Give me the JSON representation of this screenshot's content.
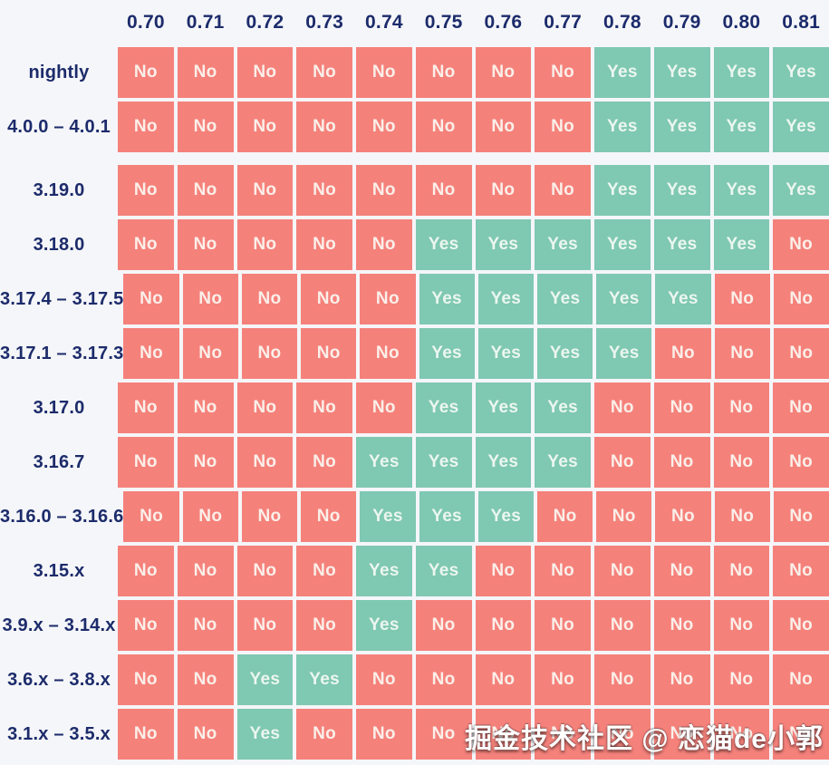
{
  "page": {
    "background": "#F5F6F9"
  },
  "watermark": "掘金技术社区 @ 恋猫de小郭",
  "chart_data": {
    "type": "heatmap",
    "title": "",
    "xlabel": "",
    "ylabel": "",
    "legend_position": "none",
    "grid": false,
    "columns": [
      "0.70",
      "0.71",
      "0.72",
      "0.73",
      "0.74",
      "0.75",
      "0.76",
      "0.77",
      "0.78",
      "0.79",
      "0.80",
      "0.81"
    ],
    "cell_values_meaning": "compatibility Yes/No",
    "colors": {
      "yes": "#7FC8B1",
      "no": "#F5817B",
      "label": "#1C2B6B",
      "yes_text": "#EBF6F0",
      "no_text": "#FBEFE9"
    },
    "sections": [
      {
        "rows": [
          {
            "label": "nightly",
            "values": [
              "No",
              "No",
              "No",
              "No",
              "No",
              "No",
              "No",
              "No",
              "Yes",
              "Yes",
              "Yes",
              "Yes"
            ]
          },
          {
            "label": "4.0.0 – 4.0.1",
            "values": [
              "No",
              "No",
              "No",
              "No",
              "No",
              "No",
              "No",
              "No",
              "Yes",
              "Yes",
              "Yes",
              "Yes"
            ]
          }
        ]
      },
      {
        "rows": [
          {
            "label": "3.19.0",
            "values": [
              "No",
              "No",
              "No",
              "No",
              "No",
              "No",
              "No",
              "No",
              "Yes",
              "Yes",
              "Yes",
              "Yes"
            ]
          },
          {
            "label": "3.18.0",
            "values": [
              "No",
              "No",
              "No",
              "No",
              "No",
              "Yes",
              "Yes",
              "Yes",
              "Yes",
              "Yes",
              "Yes",
              "No"
            ]
          },
          {
            "label": "3.17.4 – 3.17.5",
            "values": [
              "No",
              "No",
              "No",
              "No",
              "No",
              "Yes",
              "Yes",
              "Yes",
              "Yes",
              "Yes",
              "No",
              "No"
            ]
          },
          {
            "label": "3.17.1 – 3.17.3",
            "values": [
              "No",
              "No",
              "No",
              "No",
              "No",
              "Yes",
              "Yes",
              "Yes",
              "Yes",
              "No",
              "No",
              "No"
            ]
          },
          {
            "label": "3.17.0",
            "values": [
              "No",
              "No",
              "No",
              "No",
              "No",
              "Yes",
              "Yes",
              "Yes",
              "No",
              "No",
              "No",
              "No"
            ]
          },
          {
            "label": "3.16.7",
            "values": [
              "No",
              "No",
              "No",
              "No",
              "Yes",
              "Yes",
              "Yes",
              "Yes",
              "No",
              "No",
              "No",
              "No"
            ]
          },
          {
            "label": "3.16.0 – 3.16.6",
            "values": [
              "No",
              "No",
              "No",
              "No",
              "Yes",
              "Yes",
              "Yes",
              "No",
              "No",
              "No",
              "No",
              "No"
            ]
          },
          {
            "label": "3.15.x",
            "values": [
              "No",
              "No",
              "No",
              "No",
              "Yes",
              "Yes",
              "No",
              "No",
              "No",
              "No",
              "No",
              "No"
            ]
          },
          {
            "label": "3.9.x – 3.14.x",
            "values": [
              "No",
              "No",
              "No",
              "No",
              "Yes",
              "No",
              "No",
              "No",
              "No",
              "No",
              "No",
              "No"
            ]
          },
          {
            "label": "3.6.x – 3.8.x",
            "values": [
              "No",
              "No",
              "Yes",
              "Yes",
              "No",
              "No",
              "No",
              "No",
              "No",
              "No",
              "No",
              "No"
            ]
          },
          {
            "label": "3.1.x – 3.5.x",
            "values": [
              "No",
              "No",
              "Yes",
              "No",
              "No",
              "No",
              "No",
              "No",
              "No",
              "No",
              "No",
              "No"
            ]
          }
        ]
      }
    ]
  }
}
